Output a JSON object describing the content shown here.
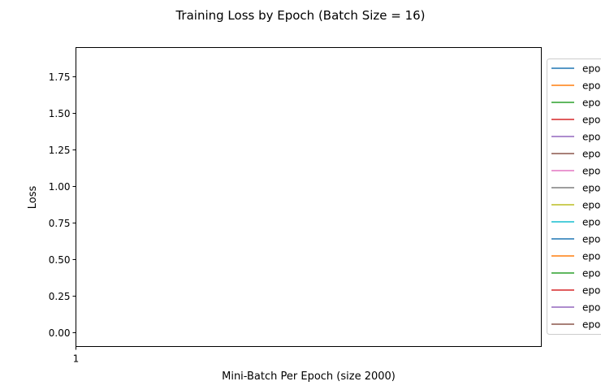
{
  "chart_data": {
    "type": "line",
    "title": "Training Loss by Epoch (Batch Size = 16)",
    "xlabel": "Mini-Batch Per Epoch (size 2000)",
    "ylabel": "Loss",
    "ylim": [
      -0.1,
      1.95
    ],
    "yticks": [
      0.0,
      0.25,
      0.5,
      0.75,
      1.0,
      1.25,
      1.5,
      1.75
    ],
    "ytick_labels": [
      "0.00",
      "0.25",
      "0.50",
      "0.75",
      "1.00",
      "1.25",
      "1.50",
      "1.75"
    ],
    "xticks": [
      "1"
    ],
    "grid": false,
    "legend_placement": "outside-right",
    "series": [
      {
        "name": "epoc",
        "color": "#1f77b4",
        "values": []
      },
      {
        "name": "epoc",
        "color": "#ff7f0e",
        "values": []
      },
      {
        "name": "epoc",
        "color": "#2ca02c",
        "values": []
      },
      {
        "name": "epoc",
        "color": "#d62728",
        "values": []
      },
      {
        "name": "epoc",
        "color": "#9467bd",
        "values": []
      },
      {
        "name": "epoc",
        "color": "#8c564b",
        "values": []
      },
      {
        "name": "epoc",
        "color": "#e377c2",
        "values": []
      },
      {
        "name": "epoc",
        "color": "#7f7f7f",
        "values": []
      },
      {
        "name": "epoc",
        "color": "#bcbd22",
        "values": []
      },
      {
        "name": "epoc",
        "color": "#17becf",
        "values": []
      },
      {
        "name": "epoc",
        "color": "#1f77b4",
        "values": []
      },
      {
        "name": "epoc",
        "color": "#ff7f0e",
        "values": []
      },
      {
        "name": "epoc",
        "color": "#2ca02c",
        "values": []
      },
      {
        "name": "epoc",
        "color": "#d62728",
        "values": []
      },
      {
        "name": "epoc",
        "color": "#9467bd",
        "values": []
      },
      {
        "name": "epoc",
        "color": "#8c564b",
        "values": []
      }
    ]
  }
}
